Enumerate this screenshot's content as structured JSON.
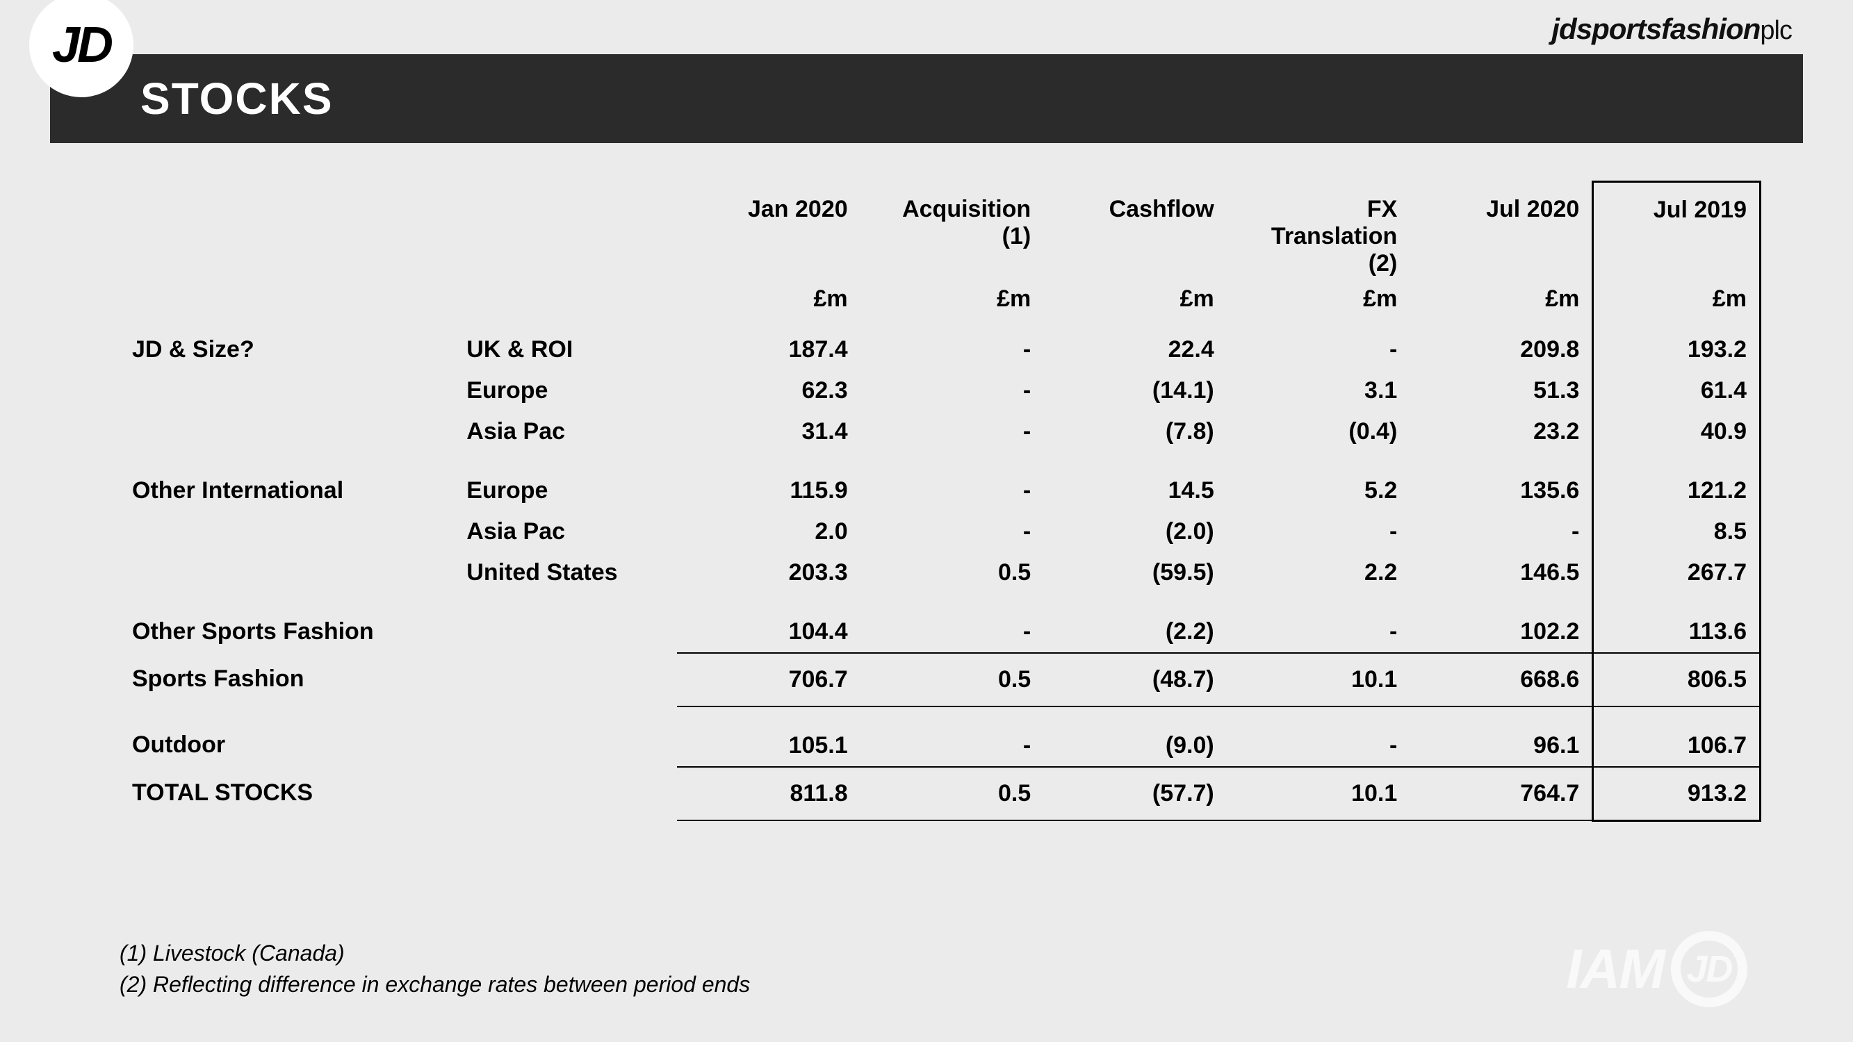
{
  "header": {
    "logo": "JD",
    "brand": "jdsportsfashion",
    "brand_suffix": "plc",
    "title": "STOCKS"
  },
  "table": {
    "columns": [
      {
        "label": "Jan 2020",
        "sub": ""
      },
      {
        "label": "Acquisition",
        "sub": "(1)"
      },
      {
        "label": "Cashflow",
        "sub": ""
      },
      {
        "label": "FX Translation",
        "sub": "(2)"
      },
      {
        "label": "Jul  2020",
        "sub": ""
      },
      {
        "label": "Jul  2019",
        "sub": ""
      }
    ],
    "unit": "£m",
    "rows": [
      {
        "category": "JD & Size?",
        "region": "UK & ROI",
        "vals": [
          "187.4",
          "-",
          "22.4",
          "-",
          "209.8",
          "193.2"
        ],
        "first": true
      },
      {
        "category": "",
        "region": "Europe",
        "vals": [
          "62.3",
          "-",
          "(14.1)",
          "3.1",
          "51.3",
          "61.4"
        ]
      },
      {
        "category": "",
        "region": "Asia Pac",
        "vals": [
          "31.4",
          "-",
          "(7.8)",
          "(0.4)",
          "23.2",
          "40.9"
        ]
      },
      {
        "category": "Other International",
        "region": "Europe",
        "vals": [
          "115.9",
          "-",
          "14.5",
          "5.2",
          "135.6",
          "121.2"
        ],
        "gap": true
      },
      {
        "category": "",
        "region": "Asia Pac",
        "vals": [
          "2.0",
          "-",
          "(2.0)",
          "-",
          "-",
          "8.5"
        ]
      },
      {
        "category": "",
        "region": "United States",
        "vals": [
          "203.3",
          "0.5",
          "(59.5)",
          "2.2",
          "146.5",
          "267.7"
        ]
      },
      {
        "category": "Other Sports Fashion",
        "region": "",
        "vals": [
          "104.4",
          "-",
          "(2.2)",
          "-",
          "102.2",
          "113.6"
        ],
        "gap": true
      }
    ],
    "subtotals": [
      {
        "category": "Sports Fashion",
        "vals": [
          "706.7",
          "0.5",
          "(48.7)",
          "10.1",
          "668.6",
          "806.5"
        ]
      }
    ],
    "outdoor": {
      "category": "Outdoor",
      "vals": [
        "105.1",
        "-",
        "(9.0)",
        "-",
        "96.1",
        "106.7"
      ]
    },
    "grand": {
      "category": "TOTAL STOCKS",
      "vals": [
        "811.8",
        "0.5",
        "(57.7)",
        "10.1",
        "764.7",
        "913.2"
      ]
    }
  },
  "footnotes": [
    "(1) Livestock (Canada)",
    "(2) Reflecting difference in exchange rates between period ends"
  ],
  "watermark": {
    "text": "IAM",
    "circ": "JD"
  }
}
